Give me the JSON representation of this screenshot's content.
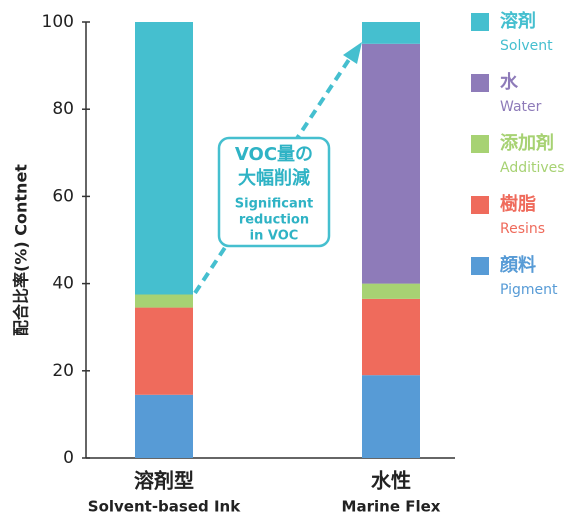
{
  "chart_data": {
    "type": "stacked_bar",
    "y_label": "配合比率(%) Contnet",
    "categories": [
      "溶剤型",
      "水性"
    ],
    "categories_en": [
      "Solvent-based Ink",
      "Marine Flex"
    ],
    "series": [
      {
        "name": "顔料",
        "name_en": "Pigment",
        "color": "#579bd6",
        "values": [
          14.5,
          19
        ]
      },
      {
        "name": "樹脂",
        "name_en": "Resins",
        "color": "#ef6b5c",
        "values": [
          20,
          17.5
        ]
      },
      {
        "name": "添加剤",
        "name_en": "Additives",
        "color": "#a7d273",
        "values": [
          3,
          3.5
        ]
      },
      {
        "name": "水",
        "name_en": "Water",
        "color": "#8e7bb9",
        "values": [
          0,
          55
        ]
      },
      {
        "name": "溶剤",
        "name_en": "Solvent",
        "color": "#45bfcf",
        "values": [
          62.5,
          5
        ]
      }
    ],
    "ylim": [
      0,
      100
    ],
    "yticks": [
      0,
      20,
      40,
      60,
      80,
      100
    ],
    "annotation": {
      "title": [
        "VOC量の",
        "大幅削減"
      ],
      "text": [
        "Significant",
        "reduction",
        "in VOC"
      ]
    }
  }
}
